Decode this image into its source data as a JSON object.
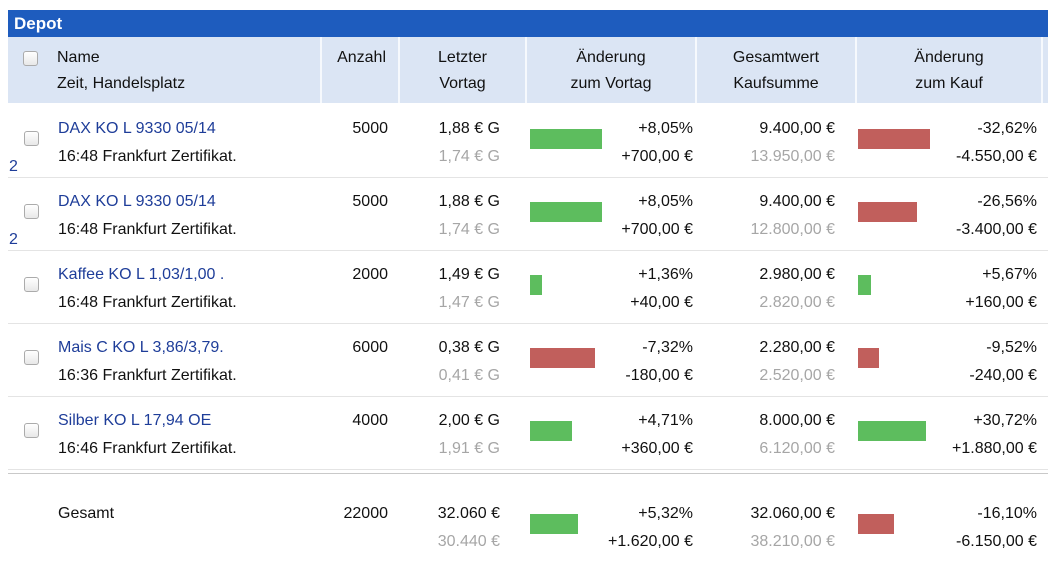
{
  "title": "Depot",
  "header": {
    "name_line1": "Name",
    "name_line2": "Zeit, Handelsplatz",
    "anzahl": "Anzahl",
    "letzter_line1": "Letzter",
    "letzter_line2": "Vortag",
    "chg_vortag_line1": "Änderung",
    "chg_vortag_line2": "zum Vortag",
    "gesamt_line1": "Gesamtwert",
    "gesamt_line2": "Kaufsumme",
    "chg_kauf_line1": "Änderung",
    "chg_kauf_line2": "zum Kauf"
  },
  "rows": [
    {
      "name": "DAX KO L 9330 05/14",
      "count_badge": "2",
      "time_place": "16:48 Frankfurt Zertifikat.",
      "anzahl": "5000",
      "letzter": "1,88 € G",
      "vortag": "1,74 € G",
      "chg_vortag_pct": "+8,05%",
      "chg_vortag_pct_value": 8.05,
      "chg_vortag_amt": "+700,00 €",
      "gesamtwert": "9.400,00 €",
      "kaufsumme": "13.950,00 €",
      "chg_kauf_pct": "-32,62%",
      "chg_kauf_pct_value": -32.62,
      "chg_kauf_amt": "-4.550,00 €"
    },
    {
      "name": "DAX KO L 9330 05/14",
      "count_badge": "2",
      "time_place": "16:48 Frankfurt Zertifikat.",
      "anzahl": "5000",
      "letzter": "1,88 € G",
      "vortag": "1,74 € G",
      "chg_vortag_pct": "+8,05%",
      "chg_vortag_pct_value": 8.05,
      "chg_vortag_amt": "+700,00 €",
      "gesamtwert": "9.400,00 €",
      "kaufsumme": "12.800,00 €",
      "chg_kauf_pct": "-26,56%",
      "chg_kauf_pct_value": -26.56,
      "chg_kauf_amt": "-3.400,00 €"
    },
    {
      "name": "Kaffee KO L 1,03/1,00 .",
      "time_place": "16:48 Frankfurt Zertifikat.",
      "anzahl": "2000",
      "letzter": "1,49 € G",
      "vortag": "1,47 € G",
      "chg_vortag_pct": "+1,36%",
      "chg_vortag_pct_value": 1.36,
      "chg_vortag_amt": "+40,00 €",
      "gesamtwert": "2.980,00 €",
      "kaufsumme": "2.820,00 €",
      "chg_kauf_pct": "+5,67%",
      "chg_kauf_pct_value": 5.67,
      "chg_kauf_amt": "+160,00 €"
    },
    {
      "name": "Mais C KO L 3,86/3,79.",
      "time_place": "16:36 Frankfurt Zertifikat.",
      "anzahl": "6000",
      "letzter": "0,38 € G",
      "vortag": "0,41 € G",
      "chg_vortag_pct": "-7,32%",
      "chg_vortag_pct_value": -7.32,
      "chg_vortag_amt": "-180,00 €",
      "gesamtwert": "2.280,00 €",
      "kaufsumme": "2.520,00 €",
      "chg_kauf_pct": "-9,52%",
      "chg_kauf_pct_value": -9.52,
      "chg_kauf_amt": "-240,00 €"
    },
    {
      "name": "Silber KO L 17,94 OE",
      "time_place": "16:46 Frankfurt Zertifikat.",
      "anzahl": "4000",
      "letzter": "2,00 € G",
      "vortag": "1,91 € G",
      "chg_vortag_pct": "+4,71%",
      "chg_vortag_pct_value": 4.71,
      "chg_vortag_amt": "+360,00 €",
      "gesamtwert": "8.000,00 €",
      "kaufsumme": "6.120,00 €",
      "chg_kauf_pct": "+30,72%",
      "chg_kauf_pct_value": 30.72,
      "chg_kauf_amt": "+1.880,00 €"
    }
  ],
  "total": {
    "label": "Gesamt",
    "anzahl": "22000",
    "letzter": "32.060 €",
    "vortag": "30.440 €",
    "chg_vortag_pct": "+5,32%",
    "chg_vortag_pct_value": 5.32,
    "chg_vortag_amt": "+1.620,00 €",
    "gesamtwert": "32.060,00 €",
    "kaufsumme": "38.210,00 €",
    "chg_kauf_pct": "-16,10%",
    "chg_kauf_pct_value": -16.1,
    "chg_kauf_amt": "-6.150,00 €"
  },
  "colors": {
    "positive": "#5dbd5e",
    "negative": "#c15f5c",
    "titlebar": "#1e5cbe",
    "header_bg": "#dbe5f4",
    "link": "#1e3d99"
  }
}
